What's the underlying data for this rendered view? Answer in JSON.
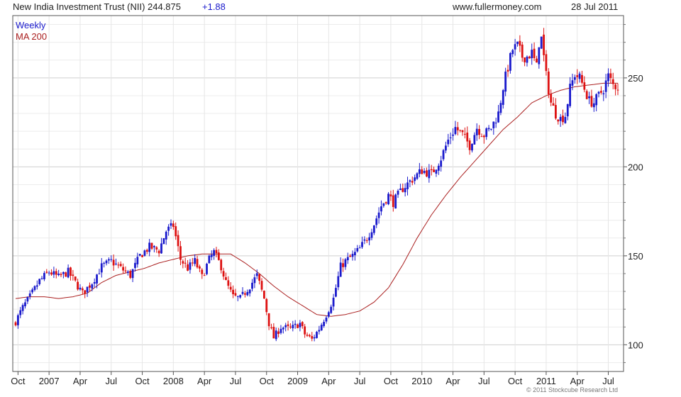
{
  "header": {
    "title": "New India Investment Trust (NII) 244.875",
    "change": "+1.88",
    "site": "www.fullermoney.com",
    "date": "28 Jul 2011"
  },
  "legend": {
    "weekly": "Weekly",
    "ma": "MA 200"
  },
  "copyright": "© 2011 Stockcube Research Ltd",
  "colors": {
    "up": "#1a1acc",
    "down": "#dd1111",
    "ma": "#aa1f1f",
    "grid": "#cfcfcf",
    "change": "#1a1acc"
  },
  "chart_data": {
    "type": "ohlc",
    "title": "New India Investment Trust (NII)",
    "series_name": "Weekly",
    "ylim": [
      85,
      285
    ],
    "y_ticks": [
      100,
      150,
      200,
      250
    ],
    "x_tick_labels": [
      "Oct",
      "2007",
      "Apr",
      "Jul",
      "Oct",
      "2008",
      "Apr",
      "Jul",
      "Oct",
      "2009",
      "Apr",
      "Jul",
      "Oct",
      "2010",
      "Apr",
      "Jul",
      "Oct",
      "2011",
      "Apr",
      "Jul"
    ],
    "x_tick_weeks": [
      1,
      14,
      27,
      40,
      53,
      66,
      79,
      92,
      105,
      118,
      131,
      144,
      157,
      170,
      183,
      196,
      209,
      222,
      235,
      248
    ],
    "close_anchors": [
      [
        0,
        113
      ],
      [
        3,
        121
      ],
      [
        6,
        127
      ],
      [
        10,
        136
      ],
      [
        14,
        141
      ],
      [
        18,
        138
      ],
      [
        22,
        141
      ],
      [
        28,
        129
      ],
      [
        32,
        135
      ],
      [
        36,
        144
      ],
      [
        40,
        147
      ],
      [
        44,
        143
      ],
      [
        48,
        139
      ],
      [
        52,
        150
      ],
      [
        56,
        155
      ],
      [
        60,
        153
      ],
      [
        63,
        164
      ],
      [
        66,
        167
      ],
      [
        69,
        148
      ],
      [
        72,
        143
      ],
      [
        75,
        147
      ],
      [
        78,
        138
      ],
      [
        81,
        148
      ],
      [
        83,
        152
      ],
      [
        86,
        144
      ],
      [
        88,
        135
      ],
      [
        91,
        127
      ],
      [
        94,
        126
      ],
      [
        98,
        133
      ],
      [
        101,
        139
      ],
      [
        104,
        126
      ],
      [
        106,
        112
      ],
      [
        108,
        104
      ],
      [
        111,
        110
      ],
      [
        115,
        109
      ],
      [
        119,
        112
      ],
      [
        121,
        106
      ],
      [
        124,
        103
      ],
      [
        127,
        109
      ],
      [
        130,
        117
      ],
      [
        133,
        126
      ],
      [
        136,
        144
      ],
      [
        138,
        147
      ],
      [
        141,
        150
      ],
      [
        144,
        154
      ],
      [
        147,
        160
      ],
      [
        150,
        168
      ],
      [
        153,
        178
      ],
      [
        156,
        184
      ],
      [
        158,
        180
      ],
      [
        162,
        188
      ],
      [
        166,
        193
      ],
      [
        170,
        198
      ],
      [
        174,
        196
      ],
      [
        178,
        205
      ],
      [
        181,
        215
      ],
      [
        184,
        222
      ],
      [
        187,
        218
      ],
      [
        190,
        212
      ],
      [
        193,
        222
      ],
      [
        196,
        218
      ],
      [
        199,
        222
      ],
      [
        202,
        230
      ],
      [
        204,
        245
      ],
      [
        206,
        256
      ],
      [
        208,
        266
      ],
      [
        210,
        268
      ],
      [
        212,
        262
      ],
      [
        214,
        262
      ],
      [
        216,
        264
      ],
      [
        218,
        256
      ],
      [
        219,
        270
      ],
      [
        220,
        272
      ],
      [
        222,
        251
      ],
      [
        224,
        236
      ],
      [
        226,
        230
      ],
      [
        228,
        227
      ],
      [
        230,
        229
      ],
      [
        232,
        244
      ],
      [
        234,
        252
      ],
      [
        236,
        250
      ],
      [
        238,
        244
      ],
      [
        240,
        237
      ],
      [
        242,
        236
      ],
      [
        244,
        240
      ],
      [
        246,
        244
      ],
      [
        248,
        251
      ],
      [
        250,
        246
      ],
      [
        252,
        245
      ]
    ],
    "ma_anchors": [
      [
        0,
        126
      ],
      [
        6,
        127
      ],
      [
        12,
        127
      ],
      [
        18,
        126
      ],
      [
        24,
        127
      ],
      [
        30,
        129
      ],
      [
        36,
        135
      ],
      [
        42,
        139
      ],
      [
        48,
        141
      ],
      [
        54,
        143
      ],
      [
        60,
        146
      ],
      [
        66,
        148
      ],
      [
        72,
        150
      ],
      [
        78,
        151
      ],
      [
        84,
        151
      ],
      [
        90,
        151
      ],
      [
        96,
        146
      ],
      [
        102,
        140
      ],
      [
        108,
        133
      ],
      [
        114,
        127
      ],
      [
        120,
        122
      ],
      [
        126,
        117
      ],
      [
        132,
        116
      ],
      [
        138,
        117
      ],
      [
        144,
        119
      ],
      [
        150,
        124
      ],
      [
        156,
        132
      ],
      [
        162,
        145
      ],
      [
        168,
        160
      ],
      [
        174,
        173
      ],
      [
        180,
        184
      ],
      [
        186,
        194
      ],
      [
        192,
        203
      ],
      [
        198,
        212
      ],
      [
        204,
        221
      ],
      [
        210,
        228
      ],
      [
        216,
        236
      ],
      [
        222,
        240
      ],
      [
        228,
        243
      ],
      [
        234,
        245
      ],
      [
        240,
        246
      ],
      [
        246,
        247
      ],
      [
        252,
        247
      ]
    ],
    "n_weeks": 253,
    "legend": [
      "Weekly",
      "MA 200"
    ],
    "grid": true,
    "y_axis_side": "right",
    "seed": 7
  }
}
